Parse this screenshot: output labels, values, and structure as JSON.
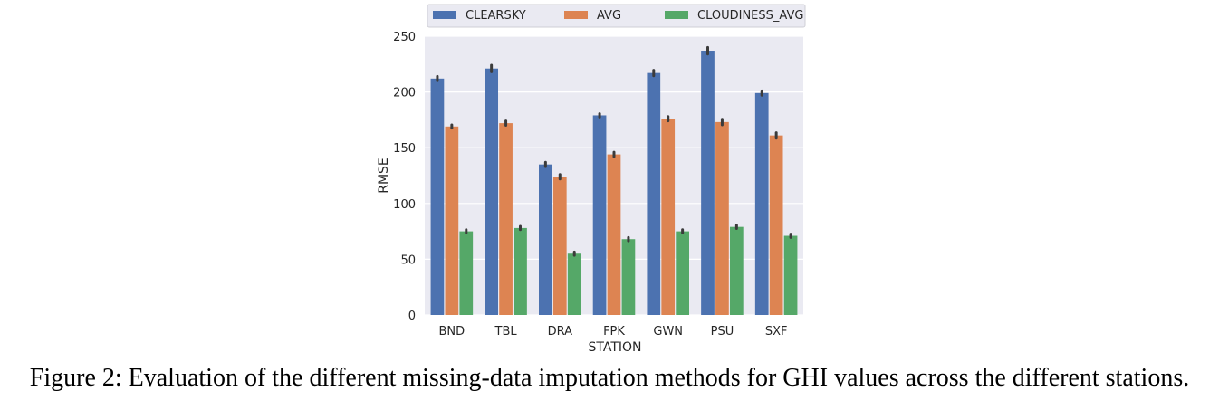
{
  "chart_data": {
    "type": "bar",
    "title": "",
    "xlabel": "STATION",
    "ylabel": "RMSE",
    "categories": [
      "BND",
      "TBL",
      "DRA",
      "FPK",
      "GWN",
      "PSU",
      "SXF"
    ],
    "series": [
      {
        "name": "CLEARSKY",
        "color": "#4C72B0",
        "values": [
          212,
          221,
          135,
          179,
          217,
          237,
          199
        ],
        "err": [
          2,
          3,
          2,
          1.5,
          2.5,
          3,
          2
        ]
      },
      {
        "name": "AVG",
        "color": "#DD8452",
        "values": [
          169,
          172,
          124,
          144,
          176,
          173,
          161
        ],
        "err": [
          1.5,
          2,
          2,
          2,
          2,
          2.5,
          2.5
        ]
      },
      {
        "name": "CLOUDINESS_AVG",
        "color": "#55A868",
        "values": [
          75,
          78,
          55,
          68,
          75,
          79,
          71
        ],
        "err": [
          1.5,
          1.5,
          1.5,
          1.5,
          1.5,
          1.5,
          1.5
        ]
      }
    ],
    "yticks": [
      0,
      50,
      100,
      150,
      200,
      250
    ],
    "ylim": [
      0,
      250
    ],
    "grid": true,
    "legend": "top"
  },
  "caption": "Figure 2: Evaluation of the different missing-data imputation methods for GHI values across the different stations."
}
